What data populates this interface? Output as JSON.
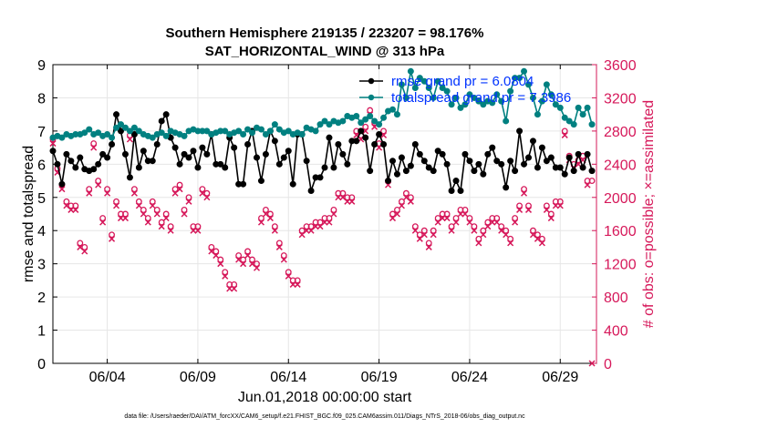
{
  "title_line1": "Southern Hemisphere 219135 / 223207 = 98.176%",
  "title_line2": "SAT_HORIZONTAL_WIND @ 313 hPa",
  "footer": "data file: /Users/raeder/DAI/ATM_forcXX/CAM6_setup/f.e21.FHIST_BGC.f09_025.CAM6assim.011/Diags_NTrS_2018-06/obs_diag_output.nc",
  "colors": {
    "rmse": "#000000",
    "spread": "#008080",
    "obs": "#d6185a",
    "legend_text": "#0033ff"
  },
  "chart_data": {
    "type": "line",
    "xlabel": "Jun.01,2018 00:00:00 start",
    "ylabel": "rmse and totalspread",
    "ylabel_right": "# of obs: o=possible; ×=assimilated",
    "x_ticks": [
      "06/04",
      "06/09",
      "06/14",
      "06/19",
      "06/24",
      "06/29"
    ],
    "x_tick_days": [
      4,
      9,
      14,
      19,
      24,
      29
    ],
    "xlim": [
      1,
      31
    ],
    "ylim": [
      0,
      9
    ],
    "y_ticks": [
      "0",
      "1",
      "2",
      "3",
      "4",
      "5",
      "6",
      "7",
      "8",
      "9"
    ],
    "ylim_right": [
      0,
      3600
    ],
    "y_ticks_right": [
      "0",
      "400",
      "800",
      "1200",
      "1600",
      "2000",
      "2400",
      "2800",
      "3200",
      "3600"
    ],
    "grid": true,
    "legend_placement": "top-right",
    "series": [
      {
        "name": "rmse grand pr = 6.0804",
        "marker": "filled-circle",
        "color": "#000000",
        "x": [
          1.0,
          1.25,
          1.5,
          1.75,
          2.0,
          2.25,
          2.5,
          2.75,
          3.0,
          3.25,
          3.5,
          3.75,
          4.0,
          4.25,
          4.5,
          4.75,
          5.0,
          5.25,
          5.5,
          5.75,
          6.0,
          6.25,
          6.5,
          6.75,
          7.0,
          7.25,
          7.5,
          7.75,
          8.0,
          8.25,
          8.5,
          8.75,
          9.0,
          9.25,
          9.5,
          9.75,
          10.0,
          10.25,
          10.5,
          10.75,
          11.0,
          11.25,
          11.5,
          11.75,
          12.0,
          12.25,
          12.5,
          12.75,
          13.0,
          13.25,
          13.5,
          13.75,
          14.0,
          14.25,
          14.5,
          14.75,
          15.0,
          15.25,
          15.5,
          15.75,
          16.0,
          16.25,
          16.5,
          16.75,
          17.0,
          17.25,
          17.5,
          17.75,
          18.0,
          18.25,
          18.5,
          18.75,
          19.0,
          19.25,
          19.5,
          19.75,
          20.0,
          20.25,
          20.5,
          20.75,
          21.0,
          21.25,
          21.5,
          21.75,
          22.0,
          22.25,
          22.5,
          22.75,
          23.0,
          23.25,
          23.5,
          23.75,
          24.0,
          24.25,
          24.5,
          24.75,
          25.0,
          25.25,
          25.5,
          25.75,
          26.0,
          26.25,
          26.5,
          26.75,
          27.0,
          27.25,
          27.5,
          27.75,
          28.0,
          28.25,
          28.5,
          28.75,
          29.0,
          29.25,
          29.5,
          29.75,
          30.0,
          30.25,
          30.5,
          30.75
        ],
        "values": [
          6.4,
          6.0,
          5.4,
          6.3,
          6.1,
          5.9,
          6.2,
          5.85,
          5.8,
          5.85,
          6.0,
          6.3,
          6.2,
          6.6,
          7.5,
          7.0,
          6.3,
          5.6,
          6.9,
          5.9,
          6.4,
          6.1,
          6.1,
          6.6,
          7.3,
          7.5,
          6.8,
          6.5,
          6.0,
          6.3,
          6.2,
          6.4,
          5.9,
          6.5,
          6.3,
          6.9,
          6.0,
          6.0,
          5.9,
          6.8,
          6.5,
          5.4,
          5.4,
          6.6,
          7.0,
          6.2,
          5.5,
          6.3,
          7.0,
          6.7,
          6.0,
          6.2,
          6.4,
          5.4,
          6.9,
          6.9,
          6.1,
          5.2,
          5.6,
          5.6,
          5.9,
          6.8,
          5.9,
          6.6,
          6.3,
          6.0,
          6.7,
          6.7,
          7.0,
          6.8,
          5.8,
          6.6,
          6.9,
          6.6,
          5.5,
          6.1,
          5.7,
          6.2,
          5.8,
          5.95,
          6.6,
          6.3,
          6.1,
          5.9,
          5.8,
          6.4,
          6.3,
          6.0,
          5.2,
          5.5,
          5.2,
          6.3,
          6.1,
          5.8,
          6.0,
          5.7,
          6.3,
          6.5,
          6.1,
          6.0,
          5.3,
          6.1,
          5.8,
          7.0,
          6.0,
          6.2,
          6.7,
          5.9,
          6.5,
          6.1,
          6.2,
          5.9,
          5.9,
          5.7,
          6.2,
          5.8,
          6.3,
          5.9,
          6.3,
          5.8
        ]
      },
      {
        "name": "totalspread grand pr = 7.3986",
        "marker": "filled-circle",
        "color": "#008080",
        "x": [
          1.0,
          1.25,
          1.5,
          1.75,
          2.0,
          2.25,
          2.5,
          2.75,
          3.0,
          3.25,
          3.5,
          3.75,
          4.0,
          4.25,
          4.5,
          4.75,
          5.0,
          5.25,
          5.5,
          5.75,
          6.0,
          6.25,
          6.5,
          6.75,
          7.0,
          7.25,
          7.5,
          7.75,
          8.0,
          8.25,
          8.5,
          8.75,
          9.0,
          9.25,
          9.5,
          9.75,
          10.0,
          10.25,
          10.5,
          10.75,
          11.0,
          11.25,
          11.5,
          11.75,
          12.0,
          12.25,
          12.5,
          12.75,
          13.0,
          13.25,
          13.5,
          13.75,
          14.0,
          14.25,
          14.5,
          14.75,
          15.0,
          15.25,
          15.5,
          15.75,
          16.0,
          16.25,
          16.5,
          16.75,
          17.0,
          17.25,
          17.5,
          17.75,
          18.0,
          18.25,
          18.5,
          18.75,
          19.0,
          19.25,
          19.5,
          19.75,
          20.0,
          20.25,
          20.5,
          20.75,
          21.0,
          21.25,
          21.5,
          21.75,
          22.0,
          22.25,
          22.5,
          22.75,
          23.0,
          23.25,
          23.5,
          23.75,
          24.0,
          24.25,
          24.5,
          24.75,
          25.0,
          25.25,
          25.5,
          25.75,
          26.0,
          26.25,
          26.5,
          26.75,
          27.0,
          27.25,
          27.5,
          27.75,
          28.0,
          28.25,
          28.5,
          28.75,
          29.0,
          29.25,
          29.5,
          29.75,
          30.0,
          30.25,
          30.5,
          30.75
        ],
        "values": [
          6.8,
          6.85,
          6.8,
          6.9,
          6.85,
          6.9,
          6.9,
          6.95,
          7.05,
          6.9,
          6.95,
          6.85,
          6.9,
          6.8,
          7.1,
          7.2,
          7.1,
          7.0,
          7.1,
          7.0,
          6.9,
          6.85,
          6.8,
          6.9,
          6.95,
          6.85,
          7.0,
          6.95,
          6.9,
          6.85,
          7.0,
          7.05,
          7.0,
          7.0,
          7.0,
          6.9,
          6.95,
          7.0,
          7.0,
          6.9,
          6.95,
          7.0,
          6.9,
          7.05,
          6.95,
          7.1,
          7.05,
          6.9,
          7.0,
          7.2,
          7.05,
          6.95,
          7.0,
          6.9,
          6.95,
          6.9,
          7.1,
          7.05,
          7.0,
          7.2,
          7.3,
          7.2,
          7.3,
          7.25,
          7.3,
          7.45,
          7.4,
          7.45,
          7.25,
          7.35,
          7.45,
          7.3,
          7.2,
          7.4,
          7.6,
          7.65,
          7.5,
          8.4,
          8.0,
          8.8,
          8.3,
          8.6,
          8.5,
          8.3,
          8.0,
          8.5,
          8.3,
          8.2,
          7.8,
          8.0,
          7.7,
          7.8,
          8.1,
          8.0,
          7.9,
          7.8,
          7.9,
          7.85,
          8.1,
          7.9,
          7.3,
          8.2,
          8.6,
          8.6,
          8.8,
          8.4,
          8.0,
          7.5,
          7.9,
          8.4,
          8.1,
          7.8,
          7.7,
          7.4,
          7.3,
          7.2,
          7.7,
          7.5,
          7.7,
          7.2
        ]
      },
      {
        "name": "possible",
        "axis": "right",
        "marker": "o",
        "color": "#d6185a",
        "x": [
          1.0,
          1.25,
          1.5,
          1.75,
          2.0,
          2.25,
          2.5,
          2.75,
          3.0,
          3.25,
          3.5,
          3.75,
          4.0,
          4.25,
          4.5,
          4.75,
          5.0,
          5.25,
          5.5,
          5.75,
          6.0,
          6.25,
          6.5,
          6.75,
          7.0,
          7.25,
          7.5,
          7.75,
          8.0,
          8.25,
          8.5,
          8.75,
          9.0,
          9.25,
          9.5,
          9.75,
          10.0,
          10.25,
          10.5,
          10.75,
          11.0,
          11.25,
          11.5,
          11.75,
          12.0,
          12.25,
          12.5,
          12.75,
          13.0,
          13.25,
          13.5,
          13.75,
          14.0,
          14.25,
          14.5,
          14.75,
          15.0,
          15.25,
          15.5,
          15.75,
          16.0,
          16.25,
          16.5,
          16.75,
          17.0,
          17.25,
          17.5,
          17.75,
          18.0,
          18.25,
          18.5,
          18.75,
          19.0,
          19.25,
          19.5,
          19.75,
          20.0,
          20.25,
          20.5,
          20.75,
          21.0,
          21.25,
          21.5,
          21.75,
          22.0,
          22.25,
          22.5,
          22.75,
          23.0,
          23.25,
          23.5,
          23.75,
          24.0,
          24.25,
          24.5,
          24.75,
          25.0,
          25.25,
          25.5,
          25.75,
          26.0,
          26.25,
          26.5,
          26.75,
          27.0,
          27.25,
          27.5,
          27.75,
          28.0,
          28.25,
          28.5,
          28.75,
          29.0,
          29.25,
          29.5,
          29.75,
          30.0,
          30.25,
          30.5,
          30.75
        ],
        "values": [
          2700,
          2350,
          2150,
          1950,
          1900,
          1900,
          1450,
          1400,
          2100,
          2650,
          2200,
          1750,
          2100,
          1550,
          1950,
          1800,
          1800,
          2750,
          2100,
          1950,
          1850,
          1750,
          1950,
          1850,
          1700,
          1800,
          1650,
          2100,
          2150,
          1850,
          2000,
          1650,
          1650,
          2100,
          2050,
          1400,
          1350,
          1250,
          1100,
          950,
          950,
          1300,
          1250,
          1350,
          1250,
          1200,
          1750,
          1850,
          1800,
          1650,
          1450,
          1300,
          1100,
          1000,
          1000,
          1600,
          1650,
          1650,
          1700,
          1700,
          1750,
          1750,
          1850,
          2050,
          2050,
          2000,
          2000,
          2800,
          2750,
          2850,
          3050,
          2900,
          2650,
          2800,
          2200,
          1800,
          1850,
          1950,
          2050,
          2000,
          1650,
          1550,
          1600,
          1450,
          1600,
          1750,
          1800,
          1800,
          1650,
          1750,
          1850,
          1850,
          1750,
          1650,
          1500,
          1600,
          1700,
          1750,
          1750,
          1650,
          1600,
          1500,
          1750,
          1900,
          2100,
          1900,
          1600,
          1550,
          1500,
          1900,
          1800,
          1950,
          1950,
          2800,
          2500,
          2400,
          2450,
          2500,
          2200,
          2200
        ]
      },
      {
        "name": "assimilated",
        "axis": "right",
        "marker": "x",
        "color": "#d6185a",
        "x": [
          1.0,
          1.25,
          1.5,
          1.75,
          2.0,
          2.25,
          2.5,
          2.75,
          3.0,
          3.25,
          3.5,
          3.75,
          4.0,
          4.25,
          4.5,
          4.75,
          5.0,
          5.25,
          5.5,
          5.75,
          6.0,
          6.25,
          6.5,
          6.75,
          7.0,
          7.25,
          7.5,
          7.75,
          8.0,
          8.25,
          8.5,
          8.75,
          9.0,
          9.25,
          9.5,
          9.75,
          10.0,
          10.25,
          10.5,
          10.75,
          11.0,
          11.25,
          11.5,
          11.75,
          12.0,
          12.25,
          12.5,
          12.75,
          13.0,
          13.25,
          13.5,
          13.75,
          14.0,
          14.25,
          14.5,
          14.75,
          15.0,
          15.25,
          15.5,
          15.75,
          16.0,
          16.25,
          16.5,
          16.75,
          17.0,
          17.25,
          17.5,
          17.75,
          18.0,
          18.25,
          18.5,
          18.75,
          19.0,
          19.25,
          19.5,
          19.75,
          20.0,
          20.25,
          20.5,
          20.75,
          21.0,
          21.25,
          21.5,
          21.75,
          22.0,
          22.25,
          22.5,
          22.75,
          23.0,
          23.25,
          23.5,
          23.75,
          24.0,
          24.25,
          24.5,
          24.75,
          25.0,
          25.25,
          25.5,
          25.75,
          26.0,
          26.25,
          26.5,
          26.75,
          27.0,
          27.25,
          27.5,
          27.75,
          28.0,
          28.25,
          28.5,
          28.75,
          29.0,
          29.25,
          29.5,
          29.75,
          30.0,
          30.25,
          30.5,
          30.75
        ],
        "values": [
          2650,
          2300,
          2100,
          1900,
          1850,
          1850,
          1400,
          1350,
          2050,
          2600,
          2150,
          1700,
          2050,
          1500,
          1900,
          1750,
          1750,
          2700,
          2050,
          1900,
          1800,
          1700,
          1900,
          1800,
          1650,
          1750,
          1600,
          2050,
          2100,
          1800,
          1950,
          1600,
          1600,
          2050,
          2000,
          1350,
          1300,
          1200,
          1050,
          900,
          900,
          1250,
          1200,
          1300,
          1200,
          1150,
          1700,
          1800,
          1750,
          1600,
          1400,
          1250,
          1050,
          950,
          950,
          1550,
          1600,
          1600,
          1650,
          1650,
          1700,
          1700,
          1800,
          2000,
          2000,
          1950,
          1950,
          2750,
          2700,
          2800,
          3000,
          2850,
          2600,
          2750,
          2150,
          1750,
          1800,
          1900,
          2000,
          1950,
          1600,
          1500,
          1550,
          1400,
          1550,
          1700,
          1750,
          1750,
          1600,
          1700,
          1800,
          1800,
          1700,
          1600,
          1450,
          1550,
          1650,
          1700,
          1700,
          1600,
          1550,
          1450,
          1700,
          1850,
          2050,
          1850,
          1550,
          1500,
          1450,
          1850,
          1750,
          1900,
          1900,
          2750,
          2450,
          2350,
          2400,
          2450,
          2150,
          0
        ]
      }
    ]
  }
}
